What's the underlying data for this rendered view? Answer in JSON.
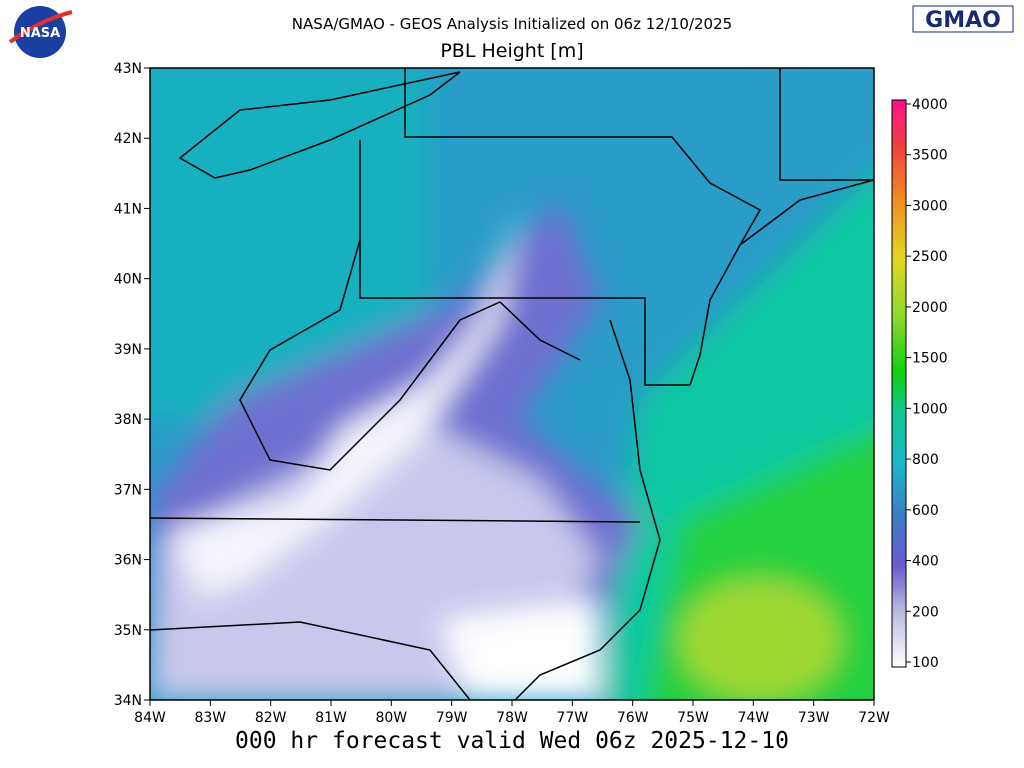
{
  "header": {
    "line1": "NASA/GMAO - GEOS Analysis Initialized on 06z 12/10/2025",
    "line2": "PBL Height [m]"
  },
  "logos": {
    "left": "NASA",
    "right": "GMAO"
  },
  "map": {
    "lat_labels": [
      "43N",
      "42N",
      "41N",
      "40N",
      "39N",
      "38N",
      "37N",
      "36N",
      "35N",
      "34N"
    ],
    "lon_labels": [
      "84W",
      "83W",
      "82W",
      "81W",
      "80W",
      "79W",
      "78W",
      "77W",
      "76W",
      "75W",
      "74W",
      "73W",
      "72W"
    ]
  },
  "colorbar": {
    "labels": [
      "4000",
      "3500",
      "3000",
      "2500",
      "2000",
      "1500",
      "1000",
      "800",
      "600",
      "400",
      "200",
      "100"
    ]
  },
  "footer": "000 hr forecast valid Wed 06z 2025-12-10"
}
